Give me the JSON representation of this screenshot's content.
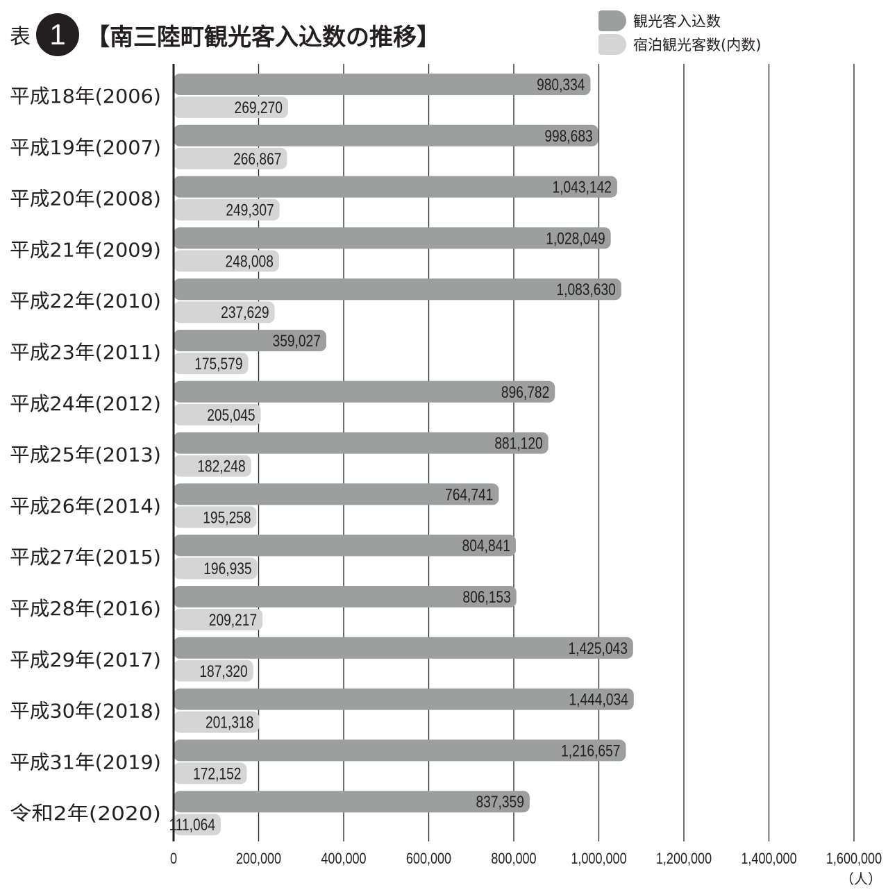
{
  "header": {
    "prefix": "表",
    "number": "1",
    "title": "【南三陸町観光客入込数の推移】"
  },
  "unit_label": "（人）",
  "colors": {
    "primary": "#9d9e9e",
    "secondary": "#d5d5d5",
    "text": "#231f20"
  },
  "chart_data": {
    "type": "bar",
    "orientation": "horizontal",
    "categories": [
      "平成18年(2006)",
      "平成19年(2007)",
      "平成20年(2008)",
      "平成21年(2009)",
      "平成22年(2010)",
      "平成23年(2011)",
      "平成24年(2012)",
      "平成25年(2013)",
      "平成26年(2014)",
      "平成27年(2015)",
      "平成28年(2016)",
      "平成29年(2017)",
      "平成30年(2018)",
      "平成31年(2019)",
      "令和2年(2020)"
    ],
    "series": [
      {
        "name": "観光客入込数",
        "values": [
          980334,
          998683,
          1043142,
          1028049,
          1083630,
          359027,
          896782,
          881120,
          764741,
          804841,
          806153,
          1425043,
          1444034,
          1216657,
          837359
        ],
        "labels": [
          "980,334",
          "998,683",
          "1,043,142",
          "1,028,049",
          "1,083,630",
          "359,027",
          "896,782",
          "881,120",
          "764,741",
          "804,841",
          "806,153",
          "1,425,043",
          "1,444,034",
          "1,216,657",
          "837,359"
        ]
      },
      {
        "name": "宿泊観光客数(内数)",
        "values": [
          269270,
          266867,
          249307,
          248008,
          237629,
          175579,
          205045,
          182248,
          195258,
          196935,
          209217,
          187320,
          201318,
          172152,
          111064
        ],
        "labels": [
          "269,270",
          "266,867",
          "249,307",
          "248,008",
          "237,629",
          "175,579",
          "205,045",
          "182,248",
          "195,258",
          "196,935",
          "209,217",
          "187,320",
          "201,318",
          "172,152",
          "111,064"
        ]
      }
    ],
    "xlim": [
      0,
      1600000
    ],
    "xticks": [
      0,
      200000,
      400000,
      600000,
      800000,
      1000000,
      1200000,
      1400000,
      1600000
    ],
    "xtick_labels": [
      "0",
      "200,000",
      "400,000",
      "600,000",
      "800,000",
      "1,000,000",
      "1,200,000",
      "1,400,000",
      "1,600,000"
    ],
    "grid": true,
    "legend": "top-right"
  }
}
